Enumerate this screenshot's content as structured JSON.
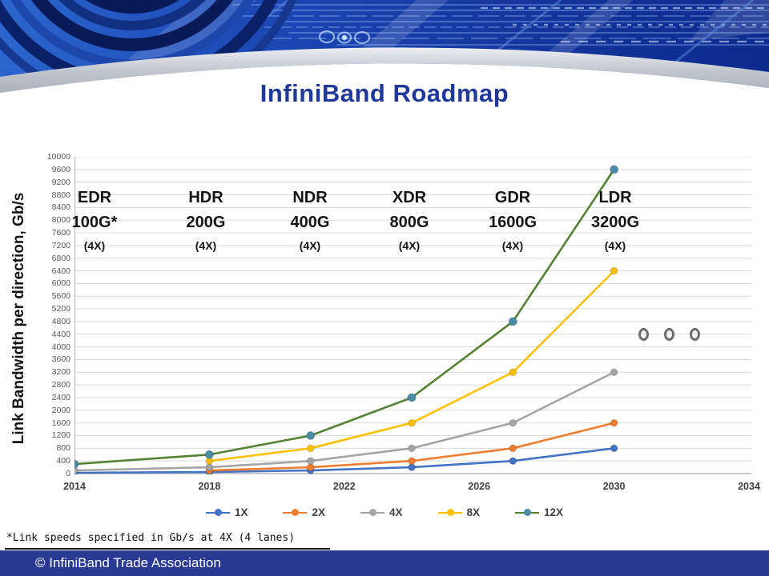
{
  "title": "InfiniBand Roadmap",
  "chart": {
    "y_axis_label": "Link Bandwidth per direction, Gb/s"
  },
  "chart_data": {
    "type": "line",
    "title": "InfiniBand Roadmap",
    "xlabel": "",
    "ylabel": "Link Bandwidth per direction, Gb/s",
    "x": [
      2014,
      2018,
      2021,
      2024,
      2027,
      2030
    ],
    "series": [
      {
        "name": "1X",
        "color": "#4472C4",
        "marker_color": "#4472C4",
        "values": [
          25,
          50,
          100,
          200,
          400,
          800
        ]
      },
      {
        "name": "2X",
        "color": "#ED7D31",
        "marker_color": "#ED7D31",
        "values": [
          null,
          100,
          200,
          400,
          800,
          1600
        ]
      },
      {
        "name": "4X",
        "color": "#A5A5A5",
        "marker_color": "#A5A5A5",
        "values": [
          100,
          200,
          400,
          800,
          1600,
          3200
        ]
      },
      {
        "name": "8X",
        "color": "#FFC000",
        "marker_color": "#FFC000",
        "values": [
          null,
          400,
          800,
          1600,
          3200,
          6400
        ]
      },
      {
        "name": "12X",
        "color": "#548235",
        "marker_color": "#4A8BA6",
        "values": [
          300,
          600,
          1200,
          2400,
          4800,
          9600
        ]
      }
    ],
    "ylim": [
      0,
      10000
    ],
    "ytick_step": 400,
    "y_ticks": [
      0,
      400,
      800,
      1200,
      1600,
      2000,
      2400,
      2800,
      3200,
      3600,
      4000,
      4400,
      4800,
      5200,
      5600,
      6000,
      6400,
      6800,
      7200,
      7600,
      8000,
      8400,
      8800,
      9200,
      9600,
      10000
    ],
    "xlim": [
      2014,
      2034
    ],
    "x_axis_ticks": [
      2014,
      2018,
      2022,
      2026,
      2030,
      2034
    ],
    "grid": true,
    "legend_position": "bottom",
    "annotations": [
      "future speeds ellipsis: o o o"
    ]
  },
  "milestones": [
    {
      "name": "EDR",
      "speed": "100G*",
      "lanes": "(4X)"
    },
    {
      "name": "HDR",
      "speed": "200G",
      "lanes": "(4X)"
    },
    {
      "name": "NDR",
      "speed": "400G",
      "lanes": "(4X)"
    },
    {
      "name": "XDR",
      "speed": "800G",
      "lanes": "(4X)"
    },
    {
      "name": "GDR",
      "speed": "1600G",
      "lanes": "(4X)"
    },
    {
      "name": "LDR",
      "speed": "3200G",
      "lanes": "(4X)"
    }
  ],
  "future_indicator": {
    "icon": "future-speeds-ellipsis-icon",
    "count": 3
  },
  "footnote": "*Link speeds specified in Gb/s at 4X (4 lanes)",
  "footer": {
    "copyright": "© InfiniBand Trade Association"
  },
  "colors": {
    "title": "#21389B",
    "footer_bar": "#2A3A94",
    "gridline": "#dadada",
    "axis_line": "#b9b9b9"
  }
}
